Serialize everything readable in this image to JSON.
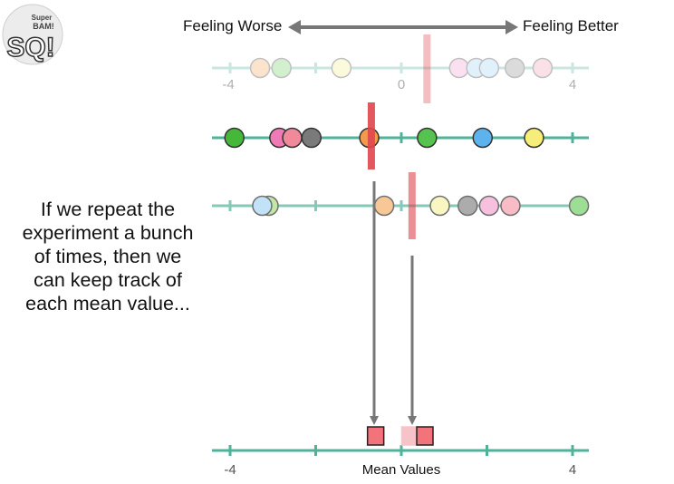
{
  "header": {
    "left_label": "Feeling Worse",
    "right_label": "Feeling Better"
  },
  "logo": {
    "text_lines": [
      "Super",
      "BAM!",
      "SQ!"
    ]
  },
  "axis": {
    "min": -4,
    "max": 4,
    "tick_labels": [
      "-4",
      "0",
      "4"
    ]
  },
  "caption": {
    "lines": [
      "If we repeat the",
      "experiment a bunch",
      "of times, then we",
      "can keep track of",
      "each mean value..."
    ]
  },
  "bottom_axis": {
    "title": "Mean Values",
    "tick_labels": [
      "-4",
      "4"
    ]
  },
  "colors": {
    "teal_line": "#4fb39a",
    "mean_marker": "#e0454e",
    "arrow": "#777777"
  },
  "experiments": [
    {
      "faded": true,
      "mean": 0.6,
      "points": [
        {
          "value": -3.3,
          "color": "#f7a45a"
        },
        {
          "value": -2.8,
          "color": "#6ccf5b"
        },
        {
          "value": -1.4,
          "color": "#f4f08c"
        },
        {
          "value": 1.35,
          "color": "#f19bd0"
        },
        {
          "value": 1.75,
          "color": "#9fd3f7"
        },
        {
          "value": 2.05,
          "color": "#9fd3f7"
        },
        {
          "value": 2.65,
          "color": "#8a8a8a"
        },
        {
          "value": 3.3,
          "color": "#f19bb2"
        }
      ]
    },
    {
      "faded": false,
      "mean": -0.7,
      "points": [
        {
          "value": -3.9,
          "color": "#45b83a"
        },
        {
          "value": -2.85,
          "color": "#f07ab6"
        },
        {
          "value": -2.55,
          "color": "#f08a9a"
        },
        {
          "value": -2.1,
          "color": "#7a7a7a"
        },
        {
          "value": -0.75,
          "color": "#f39a4c"
        },
        {
          "value": 0.6,
          "color": "#56c24f"
        },
        {
          "value": 1.9,
          "color": "#5db3ee"
        },
        {
          "value": 3.1,
          "color": "#f6ee78"
        }
      ]
    },
    {
      "faded": false,
      "mean": 0.25,
      "points": [
        {
          "value": -3.1,
          "color": "#a7e07a"
        },
        {
          "value": -3.25,
          "color": "#a9d6f5"
        },
        {
          "value": -0.4,
          "color": "#f6b06a"
        },
        {
          "value": 0.9,
          "color": "#f7f3a8"
        },
        {
          "value": 1.55,
          "color": "#8a8a8a"
        },
        {
          "value": 2.05,
          "color": "#f4a6d2"
        },
        {
          "value": 2.55,
          "color": "#f5a0ae"
        },
        {
          "value": 4.15,
          "color": "#75d169"
        }
      ]
    }
  ],
  "mean_values": [
    {
      "value": -0.6,
      "faded": false
    },
    {
      "value": 0.2,
      "faded": true
    },
    {
      "value": 0.55,
      "faded": false
    }
  ]
}
